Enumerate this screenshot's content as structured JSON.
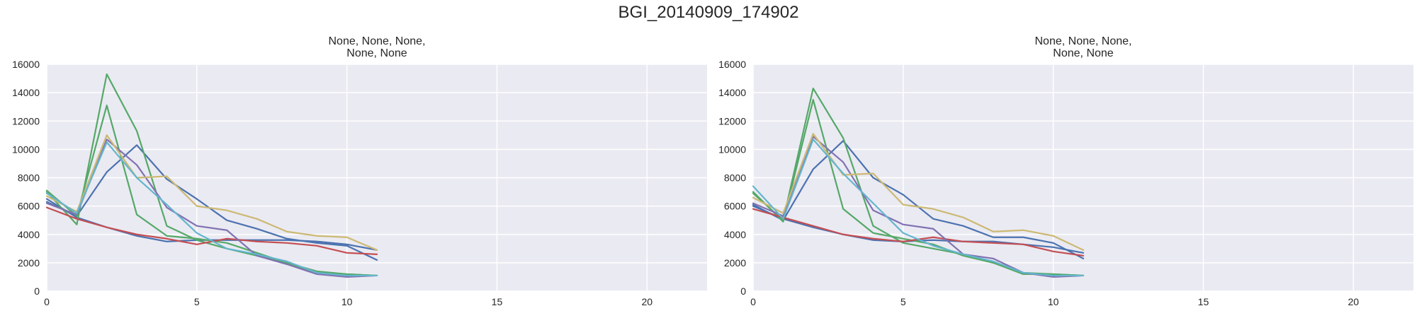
{
  "figure": {
    "title": "BGI_20140909_174902"
  },
  "colors": {
    "background": "#eaeaf2",
    "grid": "#ffffff",
    "palette": [
      "#4c72b0",
      "#55a868",
      "#c44e52",
      "#8172b2",
      "#ccb974",
      "#64b5cd"
    ]
  },
  "chart_data": [
    {
      "type": "line",
      "title": "None, None, None,\nNone, None",
      "title_lines": [
        "None, None, None,",
        "None, None"
      ],
      "xlim": [
        0,
        22
      ],
      "ylim": [
        0,
        16000
      ],
      "xticks": [
        0,
        5,
        10,
        15,
        20
      ],
      "yticks": [
        0,
        2000,
        4000,
        6000,
        8000,
        10000,
        12000,
        14000,
        16000
      ],
      "grid": true,
      "x": [
        0,
        1,
        2,
        3,
        4,
        5,
        6,
        7,
        8,
        9,
        10,
        11
      ],
      "series": [
        {
          "color": "#4c72b0",
          "values": [
            6300,
            5300,
            8400,
            10300,
            7900,
            6500,
            5000,
            4400,
            3700,
            3400,
            3200,
            2200
          ]
        },
        {
          "color": "#4c72b0",
          "values": [
            6500,
            5200,
            4500,
            3900,
            3500,
            3600,
            3600,
            3600,
            3600,
            3500,
            3300,
            2900
          ]
        },
        {
          "color": "#55a868",
          "values": [
            7000,
            4700,
            15300,
            11300,
            4600,
            3600,
            3000,
            2500,
            2000,
            1400,
            1200,
            1100
          ]
        },
        {
          "color": "#55a868",
          "values": [
            7100,
            5300,
            13100,
            5400,
            3900,
            3700,
            3400,
            2700,
            2000,
            1300,
            1200,
            1100
          ]
        },
        {
          "color": "#c44e52",
          "values": [
            5900,
            5100,
            4500,
            4000,
            3700,
            3300,
            3700,
            3500,
            3400,
            3200,
            2700,
            2600
          ]
        },
        {
          "color": "#8172b2",
          "values": [
            6200,
            5400,
            10700,
            8900,
            5900,
            4600,
            4300,
            2500,
            1900,
            1200,
            1000,
            1100
          ]
        },
        {
          "color": "#ccb974",
          "values": [
            6700,
            5600,
            11000,
            8000,
            8100,
            6000,
            5700,
            5100,
            4200,
            3900,
            3800,
            2900
          ]
        },
        {
          "color": "#64b5cd",
          "values": [
            6900,
            5500,
            10500,
            8000,
            6100,
            4100,
            3000,
            2600,
            2100,
            1300,
            1100,
            1100
          ]
        }
      ]
    },
    {
      "type": "line",
      "title": "None, None, None,\nNone, None",
      "title_lines": [
        "None, None, None,",
        "None, None"
      ],
      "xlim": [
        0,
        22
      ],
      "ylim": [
        0,
        16000
      ],
      "xticks": [
        0,
        5,
        10,
        15,
        20
      ],
      "yticks": [
        0,
        2000,
        4000,
        6000,
        8000,
        10000,
        12000,
        14000,
        16000
      ],
      "grid": true,
      "x": [
        0,
        1,
        2,
        3,
        4,
        5,
        6,
        7,
        8,
        9,
        10,
        11
      ],
      "series": [
        {
          "color": "#4c72b0",
          "values": [
            6100,
            5000,
            8600,
            10600,
            8000,
            6800,
            5100,
            4600,
            3800,
            3800,
            3400,
            2300
          ]
        },
        {
          "color": "#4c72b0",
          "values": [
            6000,
            5100,
            4500,
            4000,
            3600,
            3500,
            3600,
            3500,
            3500,
            3300,
            3100,
            2700
          ]
        },
        {
          "color": "#55a868",
          "values": [
            6900,
            5000,
            14300,
            10800,
            4600,
            3400,
            3000,
            2600,
            2000,
            1300,
            1200,
            1100
          ]
        },
        {
          "color": "#55a868",
          "values": [
            7000,
            4900,
            13500,
            5800,
            4100,
            3700,
            3300,
            2500,
            2000,
            1200,
            1200,
            1100
          ]
        },
        {
          "color": "#c44e52",
          "values": [
            5800,
            5200,
            4600,
            4000,
            3700,
            3500,
            3800,
            3500,
            3400,
            3300,
            2800,
            2500
          ]
        },
        {
          "color": "#8172b2",
          "values": [
            6200,
            5300,
            10900,
            9100,
            5700,
            4700,
            4400,
            2600,
            2300,
            1300,
            1000,
            1100
          ]
        },
        {
          "color": "#ccb974",
          "values": [
            6600,
            5500,
            11100,
            8200,
            8300,
            6100,
            5800,
            5200,
            4200,
            4300,
            3900,
            2900
          ]
        },
        {
          "color": "#64b5cd",
          "values": [
            7400,
            5100,
            10700,
            8300,
            6200,
            4100,
            3200,
            2600,
            2100,
            1300,
            1100,
            1100
          ]
        }
      ]
    }
  ]
}
